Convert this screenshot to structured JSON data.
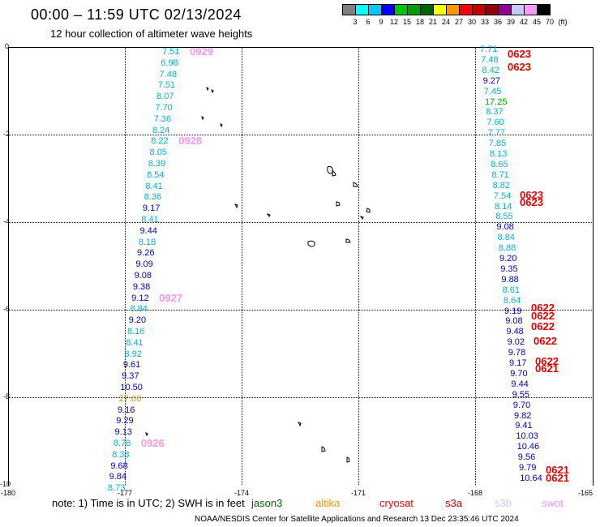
{
  "header": {
    "title": "00:00 – 11:59 UTC 02/13/2024",
    "subtitle": "12 hour collection of altimeter wave heights"
  },
  "colorbar": {
    "colors": [
      "#808080",
      "#00ffff",
      "#00c8ff",
      "#0000ff",
      "#00c800",
      "#00a000",
      "#006400",
      "#ffff00",
      "#ff9600",
      "#ff0000",
      "#c80000",
      "#960000",
      "#960096",
      "#c8c8ff",
      "#ff96ff",
      "#000000"
    ],
    "labels": [
      "3",
      "6",
      "9",
      "12",
      "15",
      "18",
      "21",
      "24",
      "27",
      "30",
      "33",
      "36",
      "39",
      "42",
      "45",
      "70",
      "(ft)"
    ]
  },
  "axes": {
    "y_ticks": [
      "0",
      "-2",
      "-4",
      "-6",
      "-8",
      "-10"
    ],
    "x_ticks": [
      "-180",
      "-177",
      "-174",
      "-171",
      "-168",
      "-165"
    ]
  },
  "tracks": {
    "left": [
      {
        "v": "7.51",
        "c": "#00b4c8"
      },
      {
        "v": "6.98",
        "c": "#00b4c8"
      },
      {
        "v": "7.48",
        "c": "#00b4c8"
      },
      {
        "v": "7.51",
        "c": "#00b4c8"
      },
      {
        "v": "8.07",
        "c": "#00b4c8"
      },
      {
        "v": "7.70",
        "c": "#00b4c8"
      },
      {
        "v": "7.36",
        "c": "#00b4c8"
      },
      {
        "v": "8.24",
        "c": "#00b4c8"
      },
      {
        "v": "8.22",
        "c": "#00b4c8"
      },
      {
        "v": "8.05",
        "c": "#00b4c8"
      },
      {
        "v": "8.39",
        "c": "#00b4c8"
      },
      {
        "v": "8.54",
        "c": "#00b4c8"
      },
      {
        "v": "8.41",
        "c": "#00b4c8"
      },
      {
        "v": "8.36",
        "c": "#00b4c8"
      },
      {
        "v": "9.17",
        "c": "#0000c8"
      },
      {
        "v": "8.41",
        "c": "#00b4c8"
      },
      {
        "v": "9.44",
        "c": "#0000c8"
      },
      {
        "v": "8.18",
        "c": "#00b4c8"
      },
      {
        "v": "9.26",
        "c": "#0000c8"
      },
      {
        "v": "9.09",
        "c": "#0000c8"
      },
      {
        "v": "9.08",
        "c": "#0000c8"
      },
      {
        "v": "9.38",
        "c": "#0000c8"
      },
      {
        "v": "9.12",
        "c": "#0000c8"
      },
      {
        "v": "8.84",
        "c": "#00b4c8"
      },
      {
        "v": "9.20",
        "c": "#0000c8"
      },
      {
        "v": "8.16",
        "c": "#00b4c8"
      },
      {
        "v": "8.41",
        "c": "#00b4c8"
      },
      {
        "v": "8.92",
        "c": "#00b4c8"
      },
      {
        "v": "9.61",
        "c": "#0000c8"
      },
      {
        "v": "9.37",
        "c": "#0000c8"
      },
      {
        "v": "10.50",
        "c": "#0000c8"
      },
      {
        "v": "27.06",
        "c": "#e69600"
      },
      {
        "v": "9.16",
        "c": "#0000c8"
      },
      {
        "v": "9.29",
        "c": "#0000c8"
      },
      {
        "v": "9.13",
        "c": "#0000c8"
      },
      {
        "v": "8.78",
        "c": "#00b4c8"
      },
      {
        "v": "8.38",
        "c": "#00b4c8"
      },
      {
        "v": "9.68",
        "c": "#0000c8"
      },
      {
        "v": "9.84",
        "c": "#0000c8"
      },
      {
        "v": "8.73",
        "c": "#00b4c8"
      }
    ],
    "left_times": [
      "0929",
      "0928",
      "0927",
      "0926"
    ],
    "right": [
      {
        "v": "7.71",
        "c": "#00b4c8"
      },
      {
        "v": "7.48",
        "c": "#00b4c8"
      },
      {
        "v": "8.42",
        "c": "#00b4c8"
      },
      {
        "v": "9.27",
        "c": "#0000c8"
      },
      {
        "v": "7.45",
        "c": "#00b4c8"
      },
      {
        "v": "17.25",
        "c": "#00a000"
      },
      {
        "v": "8.37",
        "c": "#00b4c8"
      },
      {
        "v": "7.60",
        "c": "#00b4c8"
      },
      {
        "v": "7.77",
        "c": "#00b4c8"
      },
      {
        "v": "7.85",
        "c": "#00b4c8"
      },
      {
        "v": "8.13",
        "c": "#00b4c8"
      },
      {
        "v": "8.65",
        "c": "#00b4c8"
      },
      {
        "v": "8.71",
        "c": "#00b4c8"
      },
      {
        "v": "8.82",
        "c": "#00b4c8"
      },
      {
        "v": "7.54",
        "c": "#00b4c8"
      },
      {
        "v": "8.14",
        "c": "#00b4c8"
      },
      {
        "v": "8.55",
        "c": "#00b4c8"
      },
      {
        "v": "9.08",
        "c": "#0000c8"
      },
      {
        "v": "8.84",
        "c": "#00b4c8"
      },
      {
        "v": "8.88",
        "c": "#00b4c8"
      },
      {
        "v": "9.20",
        "c": "#0000c8"
      },
      {
        "v": "9.35",
        "c": "#0000c8"
      },
      {
        "v": "9.88",
        "c": "#0000c8"
      },
      {
        "v": "8.61",
        "c": "#00b4c8"
      },
      {
        "v": "8.64",
        "c": "#00b4c8"
      },
      {
        "v": "9.19",
        "c": "#0000c8"
      },
      {
        "v": "9.08",
        "c": "#0000c8"
      },
      {
        "v": "9.48",
        "c": "#0000c8"
      },
      {
        "v": "9.02",
        "c": "#0000c8"
      },
      {
        "v": "9.78",
        "c": "#0000c8"
      },
      {
        "v": "9.17",
        "c": "#0000c8"
      },
      {
        "v": "9.70",
        "c": "#0000c8"
      },
      {
        "v": "9.44",
        "c": "#0000c8"
      },
      {
        "v": "9.55",
        "c": "#0000c8"
      },
      {
        "v": "9.70",
        "c": "#0000c8"
      },
      {
        "v": "9.82",
        "c": "#0000c8"
      },
      {
        "v": "9.41",
        "c": "#0000c8"
      },
      {
        "v": "10.03",
        "c": "#0000c8"
      },
      {
        "v": "10.46",
        "c": "#0000c8"
      },
      {
        "v": "9.56",
        "c": "#0000c8"
      },
      {
        "v": "9.79",
        "c": "#0000c8"
      },
      {
        "v": "10.64",
        "c": "#0000c8"
      }
    ],
    "right_times": [
      "0623",
      "0623",
      "0623",
      "0623",
      "0622",
      "0622",
      "0622",
      "0622",
      "0622",
      "0621",
      "0621",
      "0621"
    ]
  },
  "footer": {
    "note": "note:  1) Time is in UTC;  2) SWH is in feet",
    "legend": [
      {
        "name": "jason3",
        "color": "#006400"
      },
      {
        "name": "altika",
        "color": "#ff9600"
      },
      {
        "name": "cryosat",
        "color": "#ff0000"
      },
      {
        "name": "s3a",
        "color": "#c80000"
      },
      {
        "name": "s3b",
        "color": "#c8c8ff"
      },
      {
        "name": "swot",
        "color": "#ff96ff"
      }
    ],
    "credit": "NOAA/NESDIS Center for Satellite Applications and Research    13 Dec 23:35:46 UTC 2024"
  }
}
